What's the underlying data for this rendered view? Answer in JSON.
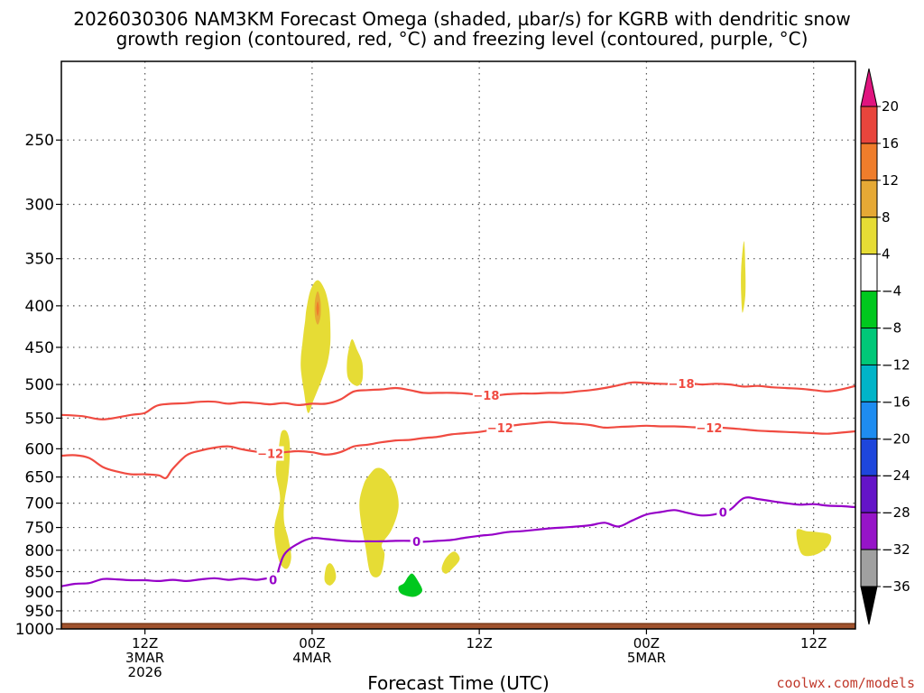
{
  "chart_data": {
    "type": "contour",
    "title_lines": [
      "2026030306 NAM3KM Forecast Omega (shaded, µbar/s) for KGRB with dendritic snow",
      "growth region (contoured, red, °C) and freezing level (contoured, purple, °C)"
    ],
    "xlabel": "Forecast Time (UTC)",
    "ylabel": "",
    "x_axis": {
      "range_hours": [
        0,
        57
      ],
      "ticks": [
        {
          "hour": 6,
          "lines": [
            "12Z",
            "3MAR",
            "2026"
          ]
        },
        {
          "hour": 18,
          "lines": [
            "00Z",
            "4MAR"
          ]
        },
        {
          "hour": 30,
          "lines": [
            "12Z"
          ]
        },
        {
          "hour": 42,
          "lines": [
            "00Z",
            "5MAR"
          ]
        },
        {
          "hour": 54,
          "lines": [
            "12Z"
          ]
        }
      ]
    },
    "y_axis": {
      "unit": "hPa",
      "range": [
        200,
        1000
      ],
      "ticks": [
        250,
        300,
        350,
        400,
        450,
        500,
        550,
        600,
        650,
        700,
        750,
        800,
        850,
        900,
        950,
        1000
      ]
    },
    "colorbar": {
      "labels": [
        "20",
        "16",
        "12",
        "8",
        "4",
        "−4",
        "−8",
        "−12",
        "−16",
        "−20",
        "−24",
        "−28",
        "−32",
        "−36"
      ],
      "top_color": "#e0157f",
      "bottom_color": "#000000",
      "segment_colors": [
        "#e8453c",
        "#ef7d2b",
        "#e6a935",
        "#e6dc35",
        "#ffffff",
        "#00c81e",
        "#00c878",
        "#00b4c8",
        "#1e8cf0",
        "#1e46dc",
        "#6414c8",
        "#9614c8",
        "#a0a0a0"
      ]
    },
    "contours": [
      {
        "name": "-18",
        "color": "#f04b41",
        "label": "−18",
        "label_hours": [
          30.5,
          44.5
        ],
        "points": [
          [
            0,
            545
          ],
          [
            1.5,
            547
          ],
          [
            3,
            552
          ],
          [
            5,
            545
          ],
          [
            6,
            542
          ],
          [
            7,
            530
          ],
          [
            9,
            527
          ],
          [
            10,
            525
          ],
          [
            11,
            525
          ],
          [
            12,
            528
          ],
          [
            13,
            526
          ],
          [
            14,
            527
          ],
          [
            15,
            529
          ],
          [
            16,
            527
          ],
          [
            17,
            530
          ],
          [
            18,
            528
          ],
          [
            19,
            528
          ],
          [
            20,
            522
          ],
          [
            21,
            510
          ],
          [
            22,
            508
          ],
          [
            23,
            507
          ],
          [
            24,
            505
          ],
          [
            25,
            508
          ],
          [
            26,
            512
          ],
          [
            27,
            512
          ],
          [
            28,
            512
          ],
          [
            29,
            513
          ],
          [
            30,
            515
          ],
          [
            31,
            516
          ],
          [
            32,
            514
          ],
          [
            33,
            513
          ],
          [
            34,
            513
          ],
          [
            35,
            512
          ],
          [
            36,
            512
          ],
          [
            37,
            510
          ],
          [
            38,
            508
          ],
          [
            39,
            505
          ],
          [
            40,
            501
          ],
          [
            41,
            497
          ],
          [
            42,
            498
          ],
          [
            43,
            499
          ],
          [
            44,
            499
          ],
          [
            45,
            498
          ],
          [
            46,
            500
          ],
          [
            47,
            499
          ],
          [
            48,
            500
          ],
          [
            49,
            503
          ],
          [
            50,
            502
          ],
          [
            51,
            504
          ],
          [
            52,
            505
          ],
          [
            53,
            506
          ],
          [
            54,
            508
          ],
          [
            55,
            510
          ],
          [
            56,
            507
          ],
          [
            57,
            502
          ]
        ]
      },
      {
        "name": "-12",
        "color": "#f04b41",
        "label": "−12",
        "label_hours": [
          15,
          31.5,
          46.5
        ],
        "points": [
          [
            0,
            612
          ],
          [
            1,
            611
          ],
          [
            2,
            616
          ],
          [
            3,
            632
          ],
          [
            4,
            640
          ],
          [
            5,
            645
          ],
          [
            6,
            645
          ],
          [
            7,
            647
          ],
          [
            7.5,
            652
          ],
          [
            8,
            635
          ],
          [
            9,
            611
          ],
          [
            10,
            603
          ],
          [
            11,
            598
          ],
          [
            12,
            596
          ],
          [
            13,
            601
          ],
          [
            14,
            605
          ],
          [
            15,
            608
          ],
          [
            16,
            606
          ],
          [
            17,
            604
          ],
          [
            18,
            606
          ],
          [
            19,
            610
          ],
          [
            20,
            606
          ],
          [
            21,
            596
          ],
          [
            22,
            593
          ],
          [
            23,
            589
          ],
          [
            24,
            586
          ],
          [
            25,
            585
          ],
          [
            26,
            582
          ],
          [
            27,
            580
          ],
          [
            28,
            576
          ],
          [
            29,
            574
          ],
          [
            30,
            572
          ],
          [
            31,
            568
          ],
          [
            32,
            563
          ],
          [
            33,
            560
          ],
          [
            34,
            558
          ],
          [
            35,
            556
          ],
          [
            36,
            558
          ],
          [
            37,
            559
          ],
          [
            38,
            561
          ],
          [
            39,
            565
          ],
          [
            40,
            564
          ],
          [
            41,
            563
          ],
          [
            42,
            562
          ],
          [
            43,
            563
          ],
          [
            44,
            563
          ],
          [
            45,
            564
          ],
          [
            46,
            565
          ],
          [
            47,
            565
          ],
          [
            48,
            566
          ],
          [
            49,
            568
          ],
          [
            50,
            570
          ],
          [
            51,
            571
          ],
          [
            52,
            572
          ],
          [
            53,
            573
          ],
          [
            54,
            574
          ],
          [
            55,
            575
          ],
          [
            56,
            573
          ],
          [
            57,
            571
          ]
        ]
      },
      {
        "name": "0",
        "color": "#9600c8",
        "label": "0",
        "label_hours": [
          15.2,
          25.5,
          47.5
        ],
        "points": [
          [
            0,
            886
          ],
          [
            1,
            880
          ],
          [
            2,
            878
          ],
          [
            3,
            868
          ],
          [
            4,
            869
          ],
          [
            5,
            871
          ],
          [
            6,
            871
          ],
          [
            7,
            873
          ],
          [
            8,
            870
          ],
          [
            9,
            873
          ],
          [
            10,
            869
          ],
          [
            11,
            866
          ],
          [
            12,
            870
          ],
          [
            13,
            867
          ],
          [
            14,
            870
          ],
          [
            15,
            866
          ],
          [
            15.5,
            875
          ],
          [
            15.5,
            858
          ],
          [
            16,
            810
          ],
          [
            17,
            785
          ],
          [
            18,
            773
          ],
          [
            19,
            775
          ],
          [
            20,
            778
          ],
          [
            21,
            780
          ],
          [
            22,
            780
          ],
          [
            23,
            780
          ],
          [
            24,
            779
          ],
          [
            25,
            779
          ],
          [
            26,
            781
          ],
          [
            27,
            779
          ],
          [
            28,
            777
          ],
          [
            29,
            772
          ],
          [
            30,
            768
          ],
          [
            31,
            765
          ],
          [
            32,
            760
          ],
          [
            33,
            758
          ],
          [
            34,
            755
          ],
          [
            35,
            752
          ],
          [
            36,
            750
          ],
          [
            37,
            748
          ],
          [
            38,
            745
          ],
          [
            39,
            740
          ],
          [
            40,
            748
          ],
          [
            41,
            735
          ],
          [
            42,
            723
          ],
          [
            43,
            718
          ],
          [
            44,
            714
          ],
          [
            45,
            720
          ],
          [
            46,
            725
          ],
          [
            47,
            722
          ],
          [
            48,
            713
          ],
          [
            49,
            690
          ],
          [
            50,
            692
          ],
          [
            51,
            696
          ],
          [
            52,
            700
          ],
          [
            53,
            703
          ],
          [
            54,
            702
          ],
          [
            55,
            705
          ],
          [
            56,
            706
          ],
          [
            57,
            708
          ]
        ]
      }
    ],
    "shaded_regions": [
      {
        "color": "#e6dc35",
        "points": [
          [
            17.7,
            542
          ],
          [
            17.4,
            508
          ],
          [
            17.2,
            480
          ],
          [
            17.2,
            462
          ],
          [
            17.3,
            445
          ],
          [
            17.4,
            430
          ],
          [
            17.5,
            417
          ],
          [
            17.6,
            403
          ],
          [
            17.9,
            382
          ],
          [
            18.4,
            372
          ],
          [
            18.9,
            382
          ],
          [
            19.2,
            400
          ],
          [
            19.3,
            420
          ],
          [
            19.3,
            446
          ],
          [
            19.1,
            470
          ],
          [
            18.7,
            493
          ],
          [
            18.4,
            508
          ],
          [
            18.1,
            523
          ]
        ]
      },
      {
        "color": "#e6a935",
        "points": [
          [
            18.2,
            412
          ],
          [
            18.2,
            395
          ],
          [
            18.4,
            384
          ],
          [
            18.6,
            395
          ],
          [
            18.6,
            412
          ],
          [
            18.4,
            422
          ]
        ]
      },
      {
        "color": "#ef7d2b",
        "points": [
          [
            18.3,
            403
          ],
          [
            18.4,
            395
          ],
          [
            18.5,
            403
          ],
          [
            18.4,
            412
          ]
        ]
      },
      {
        "color": "#e6dc35",
        "points": [
          [
            20.7,
            447
          ],
          [
            20.5,
            470
          ],
          [
            20.6,
            492
          ],
          [
            21.2,
            502
          ],
          [
            21.6,
            494
          ],
          [
            21.6,
            470
          ],
          [
            21.2,
            452
          ],
          [
            20.9,
            440
          ]
        ]
      },
      {
        "color": "#e6dc35",
        "points": [
          [
            15.6,
            600
          ],
          [
            15.4,
            640
          ],
          [
            15.7,
            692
          ],
          [
            15.3,
            747
          ],
          [
            15.4,
            790
          ],
          [
            15.7,
            830
          ],
          [
            16.2,
            843
          ],
          [
            16.5,
            817
          ],
          [
            16.3,
            775
          ],
          [
            16.0,
            740
          ],
          [
            16.0,
            700
          ],
          [
            16.3,
            648
          ],
          [
            16.4,
            595
          ],
          [
            16.2,
            572
          ],
          [
            15.8,
            572
          ]
        ]
      },
      {
        "color": "#e6dc35",
        "points": [
          [
            19.0,
            840
          ],
          [
            18.9,
            872
          ],
          [
            19.3,
            884
          ],
          [
            19.7,
            867
          ],
          [
            19.6,
            843
          ],
          [
            19.3,
            830
          ]
        ]
      },
      {
        "color": "#e6dc35",
        "points": [
          [
            21.7,
            664
          ],
          [
            21.4,
            697
          ],
          [
            21.5,
            737
          ],
          [
            21.8,
            787
          ],
          [
            22.2,
            855
          ],
          [
            22.9,
            858
          ],
          [
            23.2,
            810
          ],
          [
            23.0,
            787
          ],
          [
            23.7,
            755
          ],
          [
            24.2,
            710
          ],
          [
            24.0,
            670
          ],
          [
            23.3,
            640
          ],
          [
            22.6,
            634
          ],
          [
            22.0,
            650
          ]
        ]
      },
      {
        "color": "#00c81e",
        "points": [
          [
            24.2,
            888
          ],
          [
            24.4,
            905
          ],
          [
            25.3,
            913
          ],
          [
            25.9,
            898
          ],
          [
            25.6,
            873
          ],
          [
            25.2,
            855
          ],
          [
            24.9,
            862
          ],
          [
            24.6,
            878
          ]
        ]
      },
      {
        "color": "#e6dc35",
        "points": [
          [
            27.3,
            843
          ],
          [
            27.6,
            855
          ],
          [
            28.1,
            842
          ],
          [
            28.6,
            820
          ],
          [
            28.2,
            803
          ],
          [
            27.6,
            818
          ]
        ]
      },
      {
        "color": "#e6dc35",
        "points": [
          [
            48.8,
            360
          ],
          [
            48.8,
            388
          ],
          [
            48.9,
            408
          ],
          [
            49.1,
            388
          ],
          [
            49.1,
            360
          ],
          [
            49.0,
            333
          ]
        ]
      },
      {
        "color": "#e6dc35",
        "points": [
          [
            52.8,
            755
          ],
          [
            52.9,
            790
          ],
          [
            53.3,
            812
          ],
          [
            54.3,
            808
          ],
          [
            55.1,
            788
          ],
          [
            55.2,
            766
          ],
          [
            54.3,
            760
          ],
          [
            53.5,
            758
          ]
        ]
      }
    ],
    "surface": {
      "pressure": 985,
      "color": "#a0522d",
      "edge_color": "#7a3b1a"
    },
    "credit": "coolwx.com/models"
  }
}
